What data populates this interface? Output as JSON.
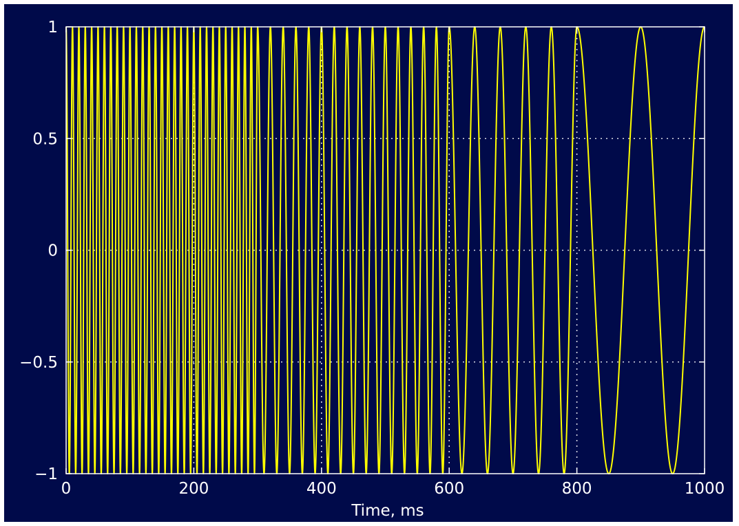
{
  "chart_data": {
    "type": "line",
    "title": "",
    "xlabel": "Time, ms",
    "ylabel": "",
    "xlim": [
      0,
      1000
    ],
    "ylim": [
      -1,
      1
    ],
    "x_ticks": [
      0,
      200,
      400,
      600,
      800,
      1000
    ],
    "x_tick_labels": [
      "0",
      "200",
      "400",
      "600",
      "800",
      "1000"
    ],
    "y_ticks": [
      1,
      0.5,
      0,
      -0.5,
      -1
    ],
    "y_tick_labels": [
      "1",
      "0.5",
      "0",
      "−0.5",
      "−1"
    ],
    "grid": true,
    "series": [
      {
        "signal": "cosine",
        "amplitude": 1,
        "segments": [
          {
            "x_start": 0,
            "x_end": 300,
            "frequency_hz": 100
          },
          {
            "x_start": 300,
            "x_end": 600,
            "frequency_hz": 50
          },
          {
            "x_start": 600,
            "x_end": 800,
            "frequency_hz": 25
          },
          {
            "x_start": 800,
            "x_end": 1000,
            "frequency_hz": 10
          }
        ],
        "color": "#ffff00"
      }
    ],
    "colors": {
      "background": "#000a4a",
      "axes": "#ffffff",
      "grid": "#ffffff",
      "series": "#ffff00"
    }
  }
}
